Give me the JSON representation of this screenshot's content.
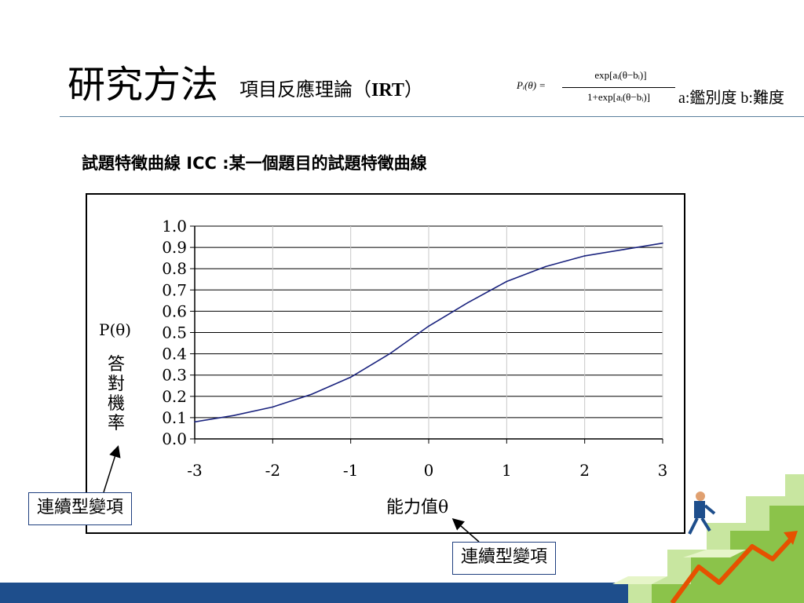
{
  "header": {
    "title": "研究方法",
    "subtitle_prefix": "項目反應理論（",
    "subtitle_bold": "IRT",
    "subtitle_suffix": "）"
  },
  "formula": {
    "lhs": "Pᵢ(θ) =",
    "numerator": "exp[aᵢ(θ−bᵢ)]",
    "denominator": "1+exp[aᵢ(θ−bᵢ)]",
    "legend": "a:鑑別度 b:難度"
  },
  "subtitle": "試題特徵曲線 ICC :某一個題目的試題特徵曲線",
  "callouts": {
    "left": "連續型變項",
    "right": "連續型變項"
  },
  "chart_data": {
    "type": "line",
    "xlabel": "能力值θ",
    "ylabel": "P(θ)",
    "ylabel_sub": "答對機率",
    "xlim": [
      -3,
      3
    ],
    "ylim": [
      0,
      1
    ],
    "x_ticks": [
      "-3",
      "-2",
      "-1",
      "0",
      "1",
      "2",
      "3"
    ],
    "y_ticks": [
      "0.0",
      "0.1",
      "0.2",
      "0.3",
      "0.4",
      "0.5",
      "0.6",
      "0.7",
      "0.8",
      "0.9",
      "1.0"
    ],
    "grid": "horizontal",
    "series": [
      {
        "color": "#1a237e",
        "x": [
          -3,
          -2.5,
          -2,
          -1.5,
          -1,
          -0.5,
          0,
          0.5,
          1,
          1.5,
          2,
          2.5,
          3
        ],
        "y": [
          0.08,
          0.11,
          0.15,
          0.21,
          0.29,
          0.4,
          0.53,
          0.64,
          0.74,
          0.81,
          0.86,
          0.89,
          0.92
        ]
      }
    ]
  }
}
